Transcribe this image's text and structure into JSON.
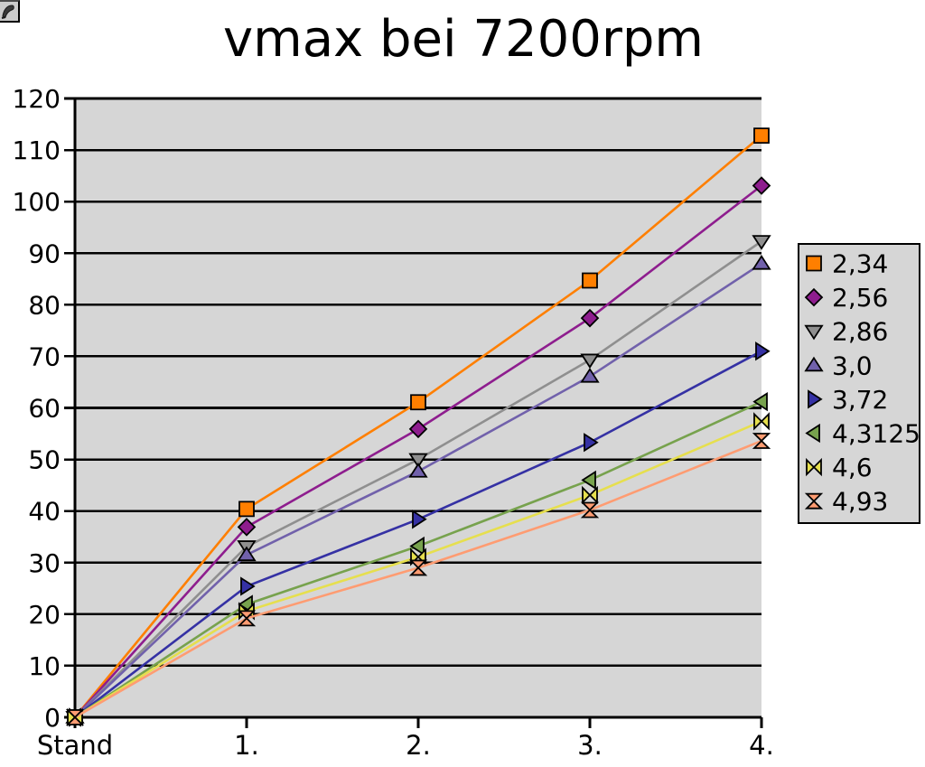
{
  "icons": {
    "top_left": "broken-image"
  },
  "chart_data": {
    "type": "line",
    "title": "vmax bei 7200rpm",
    "xlabel": "",
    "ylabel": "",
    "categories": [
      "Stand",
      "1.",
      "2.",
      "3.",
      "4."
    ],
    "ylim": [
      0,
      120
    ],
    "y_tick_step": 10,
    "grid": true,
    "legend_position": "right",
    "plot_bg": "#d6d6d6",
    "grid_color": "#000000",
    "series": [
      {
        "name": "2,34",
        "marker": "square",
        "color": "#ff7f00",
        "values": [
          0,
          40.4,
          61.1,
          84.7,
          112.8
        ]
      },
      {
        "name": "2,56",
        "marker": "diamond",
        "color": "#8e1d8e",
        "values": [
          0,
          36.9,
          55.9,
          77.4,
          103.1
        ]
      },
      {
        "name": "2,86",
        "marker": "triangle-down",
        "color": "#8f8f8f",
        "values": [
          0,
          33.1,
          50.0,
          69.3,
          92.3
        ]
      },
      {
        "name": "3,0",
        "marker": "triangle-up",
        "color": "#7161ab",
        "values": [
          0,
          31.5,
          47.7,
          66.1,
          88.0
        ]
      },
      {
        "name": "3,72",
        "marker": "triangle-right",
        "color": "#3531a4",
        "values": [
          0,
          25.4,
          38.4,
          53.3,
          71.0
        ]
      },
      {
        "name": "4,3125",
        "marker": "triangle-left",
        "color": "#77a24d",
        "values": [
          0,
          21.9,
          33.2,
          46.0,
          61.2
        ]
      },
      {
        "name": "4,6",
        "marker": "bowtie",
        "color": "#e6df4e",
        "values": [
          0,
          20.6,
          31.1,
          43.1,
          57.4
        ]
      },
      {
        "name": "4,93",
        "marker": "hourglass",
        "color": "#ff9c72",
        "values": [
          0,
          19.2,
          29.0,
          40.2,
          53.6
        ]
      }
    ]
  }
}
